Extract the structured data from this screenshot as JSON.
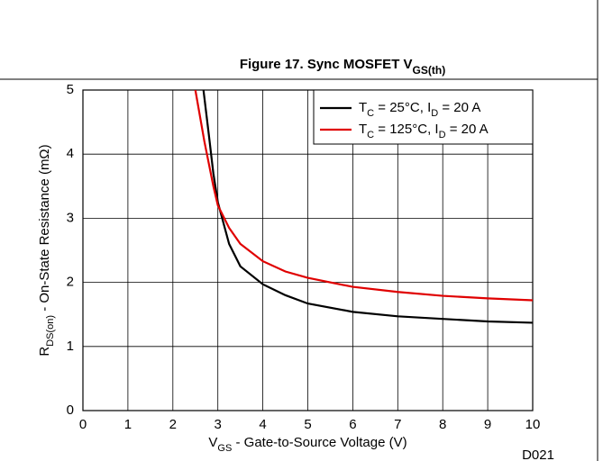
{
  "chart_data": {
    "type": "line",
    "title": [
      "Figure 17. Sync MOSFET V",
      "GS(th)"
    ],
    "xlabel": [
      "V",
      "GS",
      " - Gate-to-Source Voltage (V)"
    ],
    "ylabel": [
      "R",
      "DS(on)",
      " - On-State Resistance (mΩ)"
    ],
    "note": "D021",
    "xlim": [
      0,
      10
    ],
    "xticks": [
      0,
      1,
      2,
      3,
      4,
      5,
      6,
      7,
      8,
      9,
      10
    ],
    "ylim": [
      0,
      5
    ],
    "yticks": [
      0,
      1,
      2,
      3,
      4,
      5
    ],
    "grid": true,
    "legend": "upper right",
    "series": [
      {
        "name": [
          "T",
          "C",
          " = 25°C, I",
          "D",
          " = 20 A"
        ],
        "color": "#000000",
        "x": [
          2.68,
          2.8,
          2.9,
          3,
          3.25,
          3.5,
          4,
          4.5,
          5,
          6,
          7,
          8,
          9,
          10
        ],
        "values": [
          5,
          4.3,
          3.7,
          3.25,
          2.6,
          2.25,
          1.97,
          1.8,
          1.67,
          1.54,
          1.47,
          1.43,
          1.39,
          1.37
        ]
      },
      {
        "name": [
          "T",
          "C",
          " = 125°C, I",
          "D",
          " = 20 A"
        ],
        "color": "#e00000",
        "x": [
          2.5,
          2.7,
          2.9,
          3,
          3.25,
          3.5,
          4,
          4.5,
          5,
          6,
          7,
          8,
          9,
          10
        ],
        "values": [
          5,
          4.2,
          3.5,
          3.2,
          2.85,
          2.6,
          2.33,
          2.17,
          2.07,
          1.93,
          1.85,
          1.79,
          1.75,
          1.72
        ]
      }
    ]
  }
}
